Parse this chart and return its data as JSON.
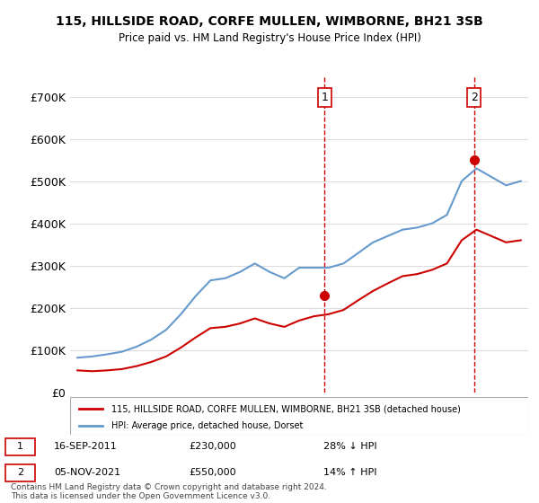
{
  "title": "115, HILLSIDE ROAD, CORFE MULLEN, WIMBORNE, BH21 3SB",
  "subtitle": "Price paid vs. HM Land Registry's House Price Index (HPI)",
  "footnote": "Contains HM Land Registry data © Crown copyright and database right 2024.\nThis data is licensed under the Open Government Licence v3.0.",
  "legend_entry1": "115, HILLSIDE ROAD, CORFE MULLEN, WIMBORNE, BH21 3SB (detached house)",
  "legend_entry2": "HPI: Average price, detached house, Dorset",
  "transaction1": {
    "label": "1",
    "date": "16-SEP-2011",
    "price": "£230,000",
    "hpi": "28% ↓ HPI"
  },
  "transaction2": {
    "label": "2",
    "date": "05-NOV-2021",
    "price": "£550,000",
    "hpi": "14% ↑ HPI"
  },
  "hpi_color": "#6699cc",
  "price_color": "#cc0000",
  "marker_color": "#cc0000",
  "dashed_line_color": "#cc0000",
  "ylim": [
    0,
    750000
  ],
  "yticks": [
    0,
    100000,
    200000,
    300000,
    400000,
    500000,
    600000,
    700000
  ],
  "ytick_labels": [
    "£0",
    "£100K",
    "£200K",
    "£300K",
    "£400K",
    "£500K",
    "£600K",
    "£700K"
  ],
  "hpi_data": {
    "years": [
      1995,
      1996,
      1997,
      1998,
      1999,
      2000,
      2001,
      2002,
      2003,
      2004,
      2005,
      2006,
      2007,
      2008,
      2009,
      2010,
      2011,
      2012,
      2013,
      2014,
      2015,
      2016,
      2017,
      2018,
      2019,
      2020,
      2021,
      2022,
      2023,
      2024,
      2025
    ],
    "values": [
      82000,
      85000,
      90000,
      96000,
      108000,
      125000,
      148000,
      185000,
      228000,
      265000,
      270000,
      285000,
      305000,
      285000,
      270000,
      295000,
      295000,
      295000,
      305000,
      330000,
      355000,
      370000,
      385000,
      390000,
      400000,
      420000,
      500000,
      530000,
      510000,
      490000,
      500000
    ]
  },
  "price_paid_data": {
    "years": [
      1995,
      1996,
      1997,
      1998,
      1999,
      2000,
      2001,
      2002,
      2003,
      2004,
      2005,
      2006,
      2007,
      2008,
      2009,
      2010,
      2011,
      2012,
      2013,
      2014,
      2015,
      2016,
      2017,
      2018,
      2019,
      2020,
      2021,
      2022,
      2023,
      2024,
      2025
    ],
    "values": [
      52000,
      50000,
      52000,
      55000,
      62000,
      72000,
      85000,
      106000,
      130000,
      152000,
      155000,
      163000,
      175000,
      163000,
      155000,
      170000,
      180000,
      185000,
      195000,
      218000,
      240000,
      258000,
      275000,
      280000,
      290000,
      305000,
      360000,
      385000,
      370000,
      355000,
      360000
    ]
  },
  "transaction1_x": 2011.72,
  "transaction1_y": 230000,
  "transaction2_x": 2021.84,
  "transaction2_y": 550000,
  "xmin": 1995,
  "xmax": 2025.5
}
